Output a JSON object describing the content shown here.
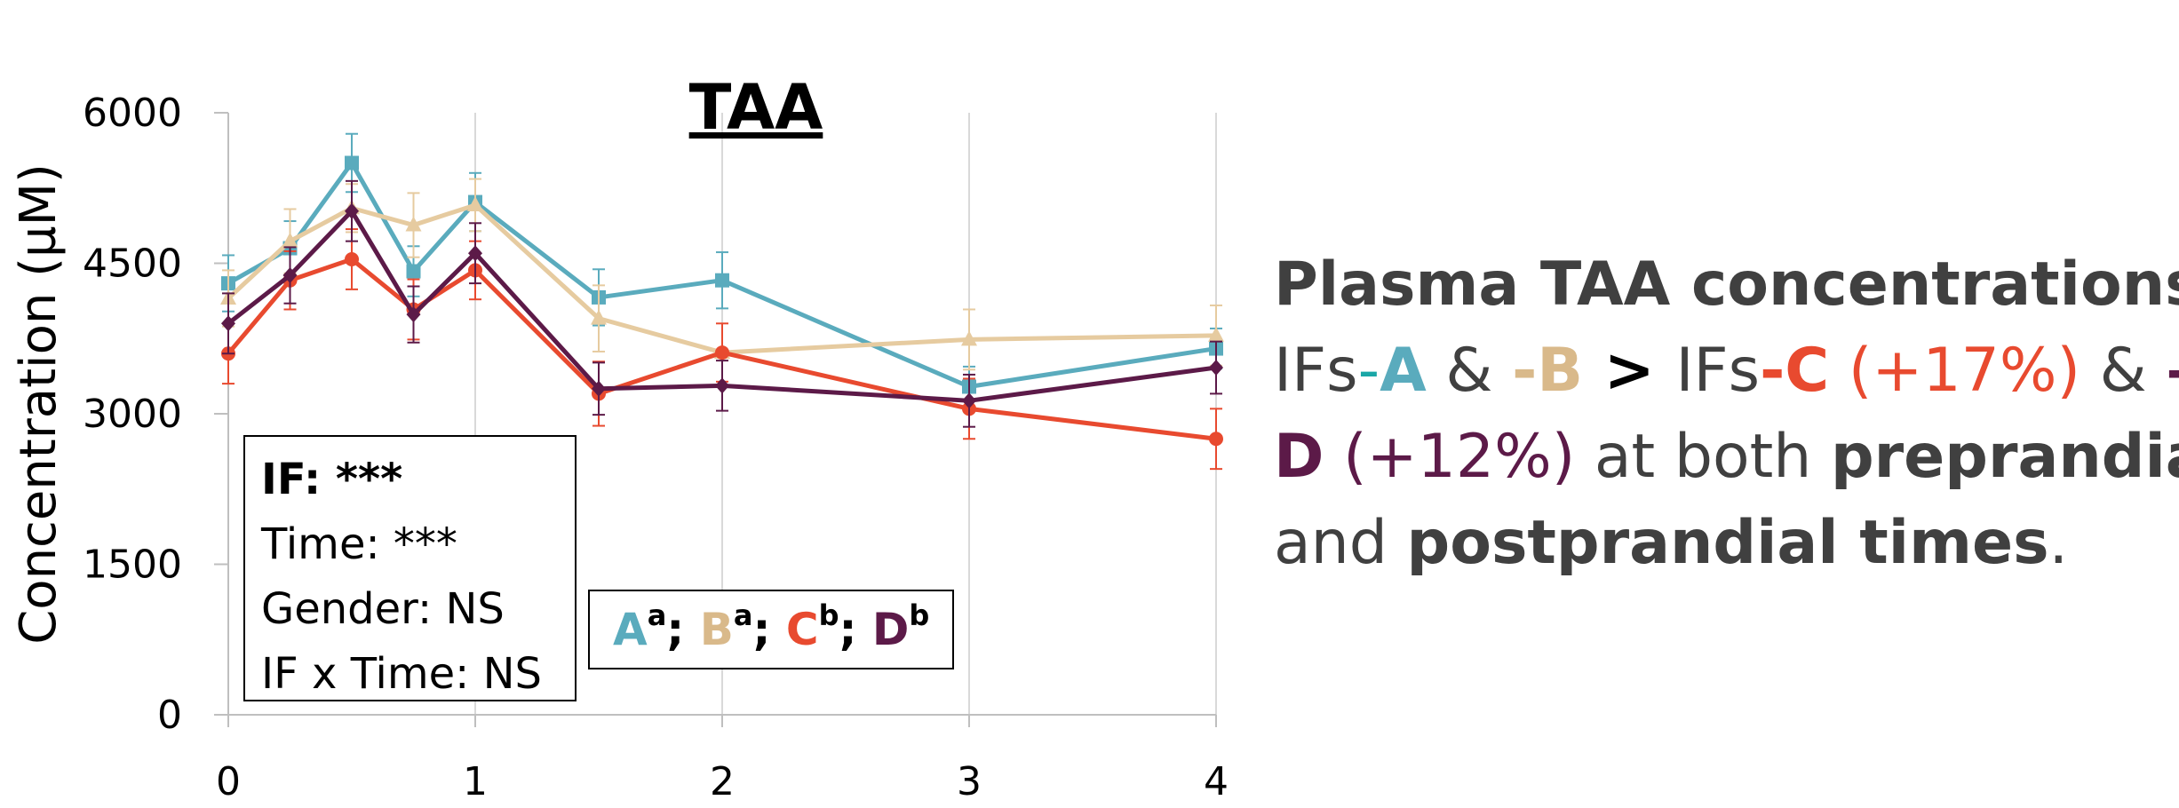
{
  "chart_data": {
    "type": "line",
    "title": "TAA",
    "ylabel": "Concentration (µM)",
    "xlabel": "",
    "xlim": [
      0,
      4
    ],
    "ylim": [
      0,
      6000
    ],
    "x_ticks": [
      "0",
      "1",
      "2",
      "3",
      "4"
    ],
    "y_ticks": [
      "0",
      "1500",
      "3000",
      "4500",
      "6000"
    ],
    "x": [
      0,
      0.25,
      0.5,
      0.75,
      1,
      1.5,
      2,
      3,
      4
    ],
    "grid": "vertical",
    "series": [
      {
        "name": "A",
        "color": "#5aabbd",
        "marker": "square",
        "values": [
          4300,
          4650,
          5500,
          4420,
          5110,
          4160,
          4330,
          3270,
          3650
        ],
        "errors": [
          280,
          270,
          290,
          250,
          290,
          280,
          280,
          200,
          200
        ]
      },
      {
        "name": "B",
        "color": "#e6cba0",
        "marker": "triangle",
        "values": [
          4150,
          4720,
          5050,
          4880,
          5080,
          3950,
          3610,
          3740,
          3780
        ],
        "errors": [
          280,
          320,
          240,
          320,
          260,
          330,
          0,
          300,
          300
        ]
      },
      {
        "name": "C",
        "color": "#e84a2f",
        "marker": "circle",
        "values": [
          3600,
          4330,
          4540,
          4040,
          4430,
          3200,
          3610,
          3050,
          2750
        ],
        "errors": [
          300,
          290,
          300,
          300,
          290,
          320,
          290,
          300,
          300
        ]
      },
      {
        "name": "D",
        "color": "#5c1a48",
        "marker": "diamond",
        "values": [
          3900,
          4380,
          5020,
          3990,
          4600,
          3250,
          3280,
          3130,
          3460
        ],
        "errors": [
          300,
          280,
          300,
          280,
          300,
          260,
          250,
          260,
          260
        ]
      }
    ]
  },
  "stats": {
    "if_line": "IF: ***",
    "time_line": "Time: ***",
    "gender_line": "Gender: NS",
    "interaction_line": "IF x Time: NS"
  },
  "groups": {
    "a_letter": "A",
    "a_sup": "a",
    "b_letter": "B",
    "b_sup": "a",
    "c_letter": "C",
    "c_sup": "b",
    "d_letter": "D",
    "d_sup": "b",
    "sep": ";"
  },
  "summary": {
    "heading": "Plasma TAA concentrations :",
    "ifs1": "IFs",
    "dash_a": "-",
    "a": "A",
    "amp1": " & ",
    "b": "-B",
    "gt": " > ",
    "ifs2": "IFs",
    "c": "-C",
    "c_pct": " (+17%)",
    "amp2": " & ",
    "d_dash": "–",
    "d": "D",
    "d_pct": " (+12%)",
    "at_both": " at both ",
    "preprandial": "preprandial",
    "and": "and ",
    "postprandial": "postprandial times",
    "period": "."
  },
  "colors": {
    "A": "#5aabbd",
    "B": "#d9b98a",
    "C": "#e84a2f",
    "D": "#5c1a48",
    "text": "#404040"
  }
}
